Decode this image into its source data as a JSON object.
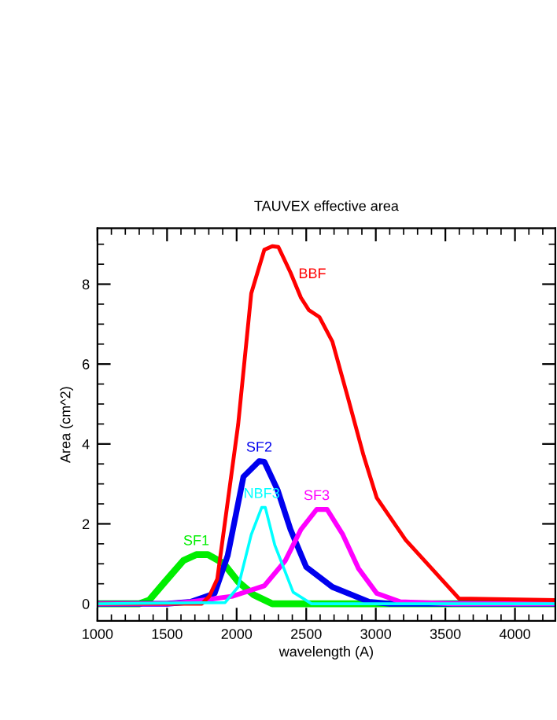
{
  "chart_data": {
    "type": "line",
    "title": "TAUVEX effective area",
    "xlabel": "wavelength (A)",
    "ylabel": "Area (cm^2)",
    "xlim": [
      1000,
      4290
    ],
    "ylim": [
      -0.43,
      9.4
    ],
    "xticks": [
      1000,
      1500,
      2000,
      2500,
      3000,
      3500,
      4000
    ],
    "yticks": [
      0,
      2,
      4,
      6,
      8
    ],
    "grid": false,
    "legend": false,
    "marker": "none",
    "line_style": "solid",
    "series": [
      {
        "name": "SF1",
        "color": "#00ee00",
        "x": [
          1000,
          1300,
          1372,
          1485,
          1617,
          1710,
          1793,
          1906,
          2011,
          2124,
          2256,
          4290
        ],
        "values": [
          0,
          0,
          0.09,
          0.55,
          1.08,
          1.23,
          1.23,
          1.01,
          0.55,
          0.22,
          0,
          0
        ]
      },
      {
        "name": "SF2",
        "color": "#0000ee",
        "x": [
          1000,
          1500,
          1673,
          1842,
          1936,
          2049,
          2162,
          2200,
          2294,
          2387,
          2500,
          2688,
          2951,
          3100,
          4290
        ],
        "values": [
          0,
          0,
          0.05,
          0.26,
          1.21,
          3.18,
          3.57,
          3.55,
          2.85,
          1.86,
          0.92,
          0.42,
          0.05,
          0,
          0
        ]
      },
      {
        "name": "SF3",
        "color": "#ff00ff",
        "x": [
          1000,
          1500,
          1673,
          1973,
          2199,
          2350,
          2462,
          2575,
          2650,
          2763,
          2876,
          3007,
          3176,
          3552,
          4290
        ],
        "values": [
          0,
          0,
          0.05,
          0.19,
          0.45,
          1.08,
          1.86,
          2.36,
          2.36,
          1.73,
          0.88,
          0.26,
          0.05,
          0,
          0
        ]
      },
      {
        "name": "BBF",
        "color": "#ff0000",
        "x": [
          1000,
          1750,
          1804,
          1861,
          2011,
          2105,
          2199,
          2256,
          2300,
          2387,
          2462,
          2519,
          2594,
          2688,
          2801,
          2913,
          3007,
          3214,
          3402,
          3598,
          4290
        ],
        "values": [
          0,
          0,
          0.19,
          0.62,
          4.49,
          7.77,
          8.86,
          8.95,
          8.93,
          8.29,
          7.66,
          7.35,
          7.18,
          6.56,
          5.14,
          3.7,
          2.65,
          1.6,
          0.88,
          0.13,
          0.09
        ]
      },
      {
        "name": "NBF3",
        "color": "#00ffff",
        "x": [
          1000,
          1917,
          2011,
          2105,
          2180,
          2206,
          2274,
          2406,
          2538,
          4290
        ],
        "values": [
          0,
          0.03,
          0.42,
          1.73,
          2.41,
          2.41,
          1.47,
          0.29,
          0,
          0
        ]
      }
    ]
  }
}
